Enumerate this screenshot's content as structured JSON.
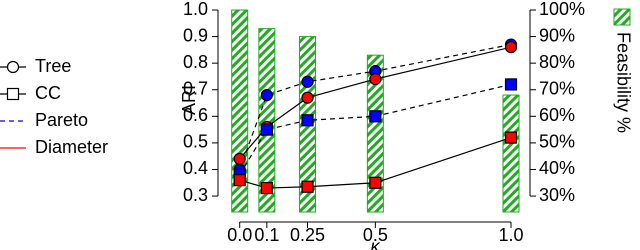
{
  "chart_data": {
    "type": "line",
    "x": [
      0,
      0.1,
      0.25,
      0.5,
      1
    ],
    "xlim": [
      -0.08,
      1.07
    ],
    "xticks": [
      {
        "value": 0,
        "label": "0.0"
      },
      0.1,
      0.25,
      0.5,
      {
        "value": 1,
        "label": "1.0"
      }
    ],
    "xlabel": "κ",
    "ylabel": "ARI",
    "ylim": [
      0.24,
      1.0
    ],
    "yticks": [
      0.3,
      0.4,
      0.5,
      0.6,
      0.7,
      0.8,
      0.9,
      {
        "value": 1,
        "label": "1.0"
      }
    ],
    "y2label": "Feasibility %",
    "y2lim": [
      24,
      100
    ],
    "y2ticks": [
      {
        "value": 30,
        "label": "30%"
      },
      {
        "value": 40,
        "label": "40%"
      },
      {
        "value": 50,
        "label": "50%"
      },
      {
        "value": 60,
        "label": "60%"
      },
      {
        "value": 70,
        "label": "70%"
      },
      {
        "value": 80,
        "label": "80%"
      },
      {
        "value": 90,
        "label": "90%"
      },
      {
        "value": 100,
        "label": "100%"
      }
    ],
    "bars": {
      "axis": "y2",
      "color": "#22aa22",
      "values": [
        100,
        93,
        90,
        83,
        68
      ]
    },
    "series": [
      {
        "marker": "circle",
        "line": "dashed",
        "color": "#0000ff",
        "values": [
          0.4,
          0.68,
          0.73,
          0.77,
          0.87
        ]
      },
      {
        "marker": "circle",
        "line": "solid",
        "color": "#ff0000",
        "values": [
          0.44,
          0.56,
          0.67,
          0.74,
          0.86
        ]
      },
      {
        "marker": "square",
        "line": "dashed",
        "color": "#0000ff",
        "values": [
          0.38,
          0.55,
          0.585,
          0.6,
          0.72
        ]
      },
      {
        "marker": "square",
        "line": "solid",
        "color": "#ff0000",
        "values": [
          0.36,
          0.33,
          0.335,
          0.35,
          0.52
        ]
      }
    ],
    "legend": [
      {
        "label": "Tree",
        "marker": "circle"
      },
      {
        "label": "CC",
        "marker": "square"
      },
      {
        "label": "Pareto",
        "line": "dashed",
        "color": "#0000ff"
      },
      {
        "label": "Diameter",
        "line": "solid",
        "color": "#ff0000"
      }
    ]
  }
}
